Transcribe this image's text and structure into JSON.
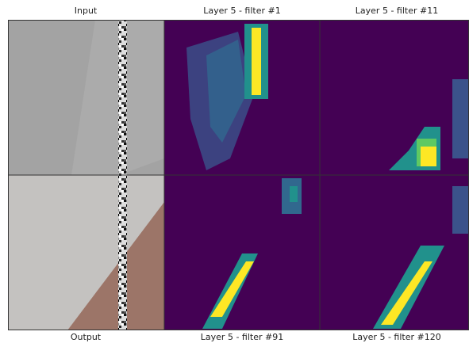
{
  "panels": [
    {
      "title": "Input"
    },
    {
      "title": "Layer 5 - filter #1"
    },
    {
      "title": "Layer 5 - filter #11"
    },
    {
      "title": "Output"
    },
    {
      "title": "Layer 5 - filter #91"
    },
    {
      "title": "Layer 5 - filter #120"
    }
  ]
}
